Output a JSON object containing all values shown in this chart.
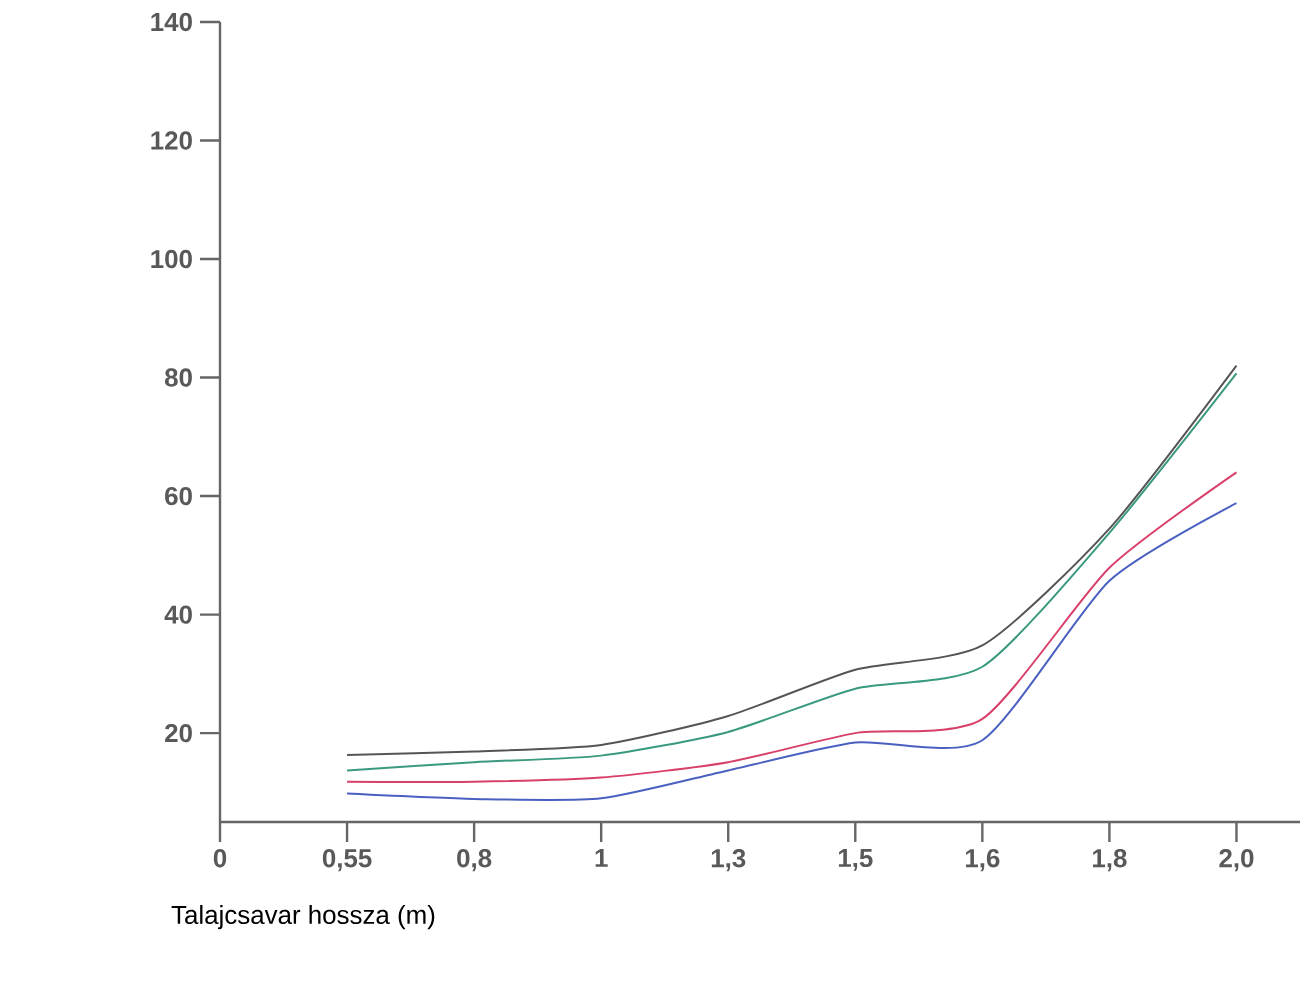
{
  "chart_data": {
    "type": "line",
    "xlabel": "Talajcsavar hossza (m)",
    "categories": [
      "0",
      "0,55",
      "0,8",
      "1",
      "1,3",
      "1,5",
      "1,6",
      "1,8",
      "2,0"
    ],
    "series": [
      {
        "color": "#555555",
        "values": [
          null,
          16.3,
          16.9,
          18,
          22.9,
          30.7,
          34.8,
          54.5,
          82
        ]
      },
      {
        "color": "#3a9a80",
        "values": [
          null,
          13.7,
          15.1,
          16.2,
          20.2,
          27.5,
          31.2,
          53.8,
          80.7
        ]
      },
      {
        "color": "#d8406a",
        "values": [
          null,
          11.8,
          11.8,
          12.5,
          15.1,
          20,
          22.4,
          47.9,
          64
        ]
      },
      {
        "color": "#4a60c0",
        "values": [
          null,
          9.8,
          8.9,
          9,
          13.7,
          18.4,
          18.8,
          45.7,
          58.8
        ]
      }
    ],
    "ylim": [
      5,
      140
    ],
    "yticks": [
      20,
      40,
      60,
      80,
      100,
      120,
      140
    ],
    "grid": false,
    "marker": "none",
    "line_style": "solid"
  }
}
